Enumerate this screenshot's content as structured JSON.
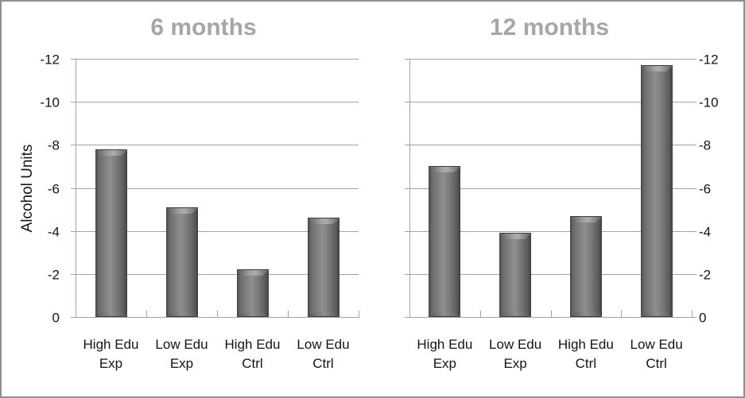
{
  "figure": {
    "description": "Two-panel grouped bar chart of change in alcohol units at 6 and 12 months",
    "background": "#ffffff"
  },
  "colors": {
    "title": "#a6a6a6",
    "gridline": "#a3a3a3",
    "axis": "#a3a3a3",
    "text": "#141414",
    "bar_dark": "#454545",
    "bar_mid": "#8f8f8f",
    "border": "#8f8f8f",
    "background": "#ffffff"
  },
  "chart_data": [
    {
      "type": "bar",
      "title": "6 months",
      "ylabel": "Alcohol Units",
      "categories": [
        "High Edu\nExp",
        "Low Edu\nExp",
        "High Edu\nCtrl",
        "Low Edu\nCtrl"
      ],
      "values": [
        -7.8,
        -5.1,
        -2.2,
        -4.6
      ],
      "ylim": [
        0,
        -12
      ],
      "yticks": [
        0,
        -2,
        -4,
        -6,
        -8,
        -10,
        -12
      ],
      "grid": true,
      "axis_labels_side": "left",
      "legend": null,
      "note": "y axis runs from 0 at bottom to -12 at top"
    },
    {
      "type": "bar",
      "title": "12 months",
      "ylabel": "",
      "categories": [
        "High Edu\nExp",
        "Low Edu\nExp",
        "High Edu\nCtrl",
        "Low Edu\nCtrl"
      ],
      "values": [
        -7.0,
        -3.9,
        -4.7,
        -11.7
      ],
      "ylim": [
        0,
        -12
      ],
      "yticks": [
        0,
        -2,
        -4,
        -6,
        -8,
        -10,
        -12
      ],
      "grid": true,
      "axis_labels_side": "right",
      "legend": null,
      "note": "y axis runs from 0 at bottom to -12 at top"
    }
  ]
}
